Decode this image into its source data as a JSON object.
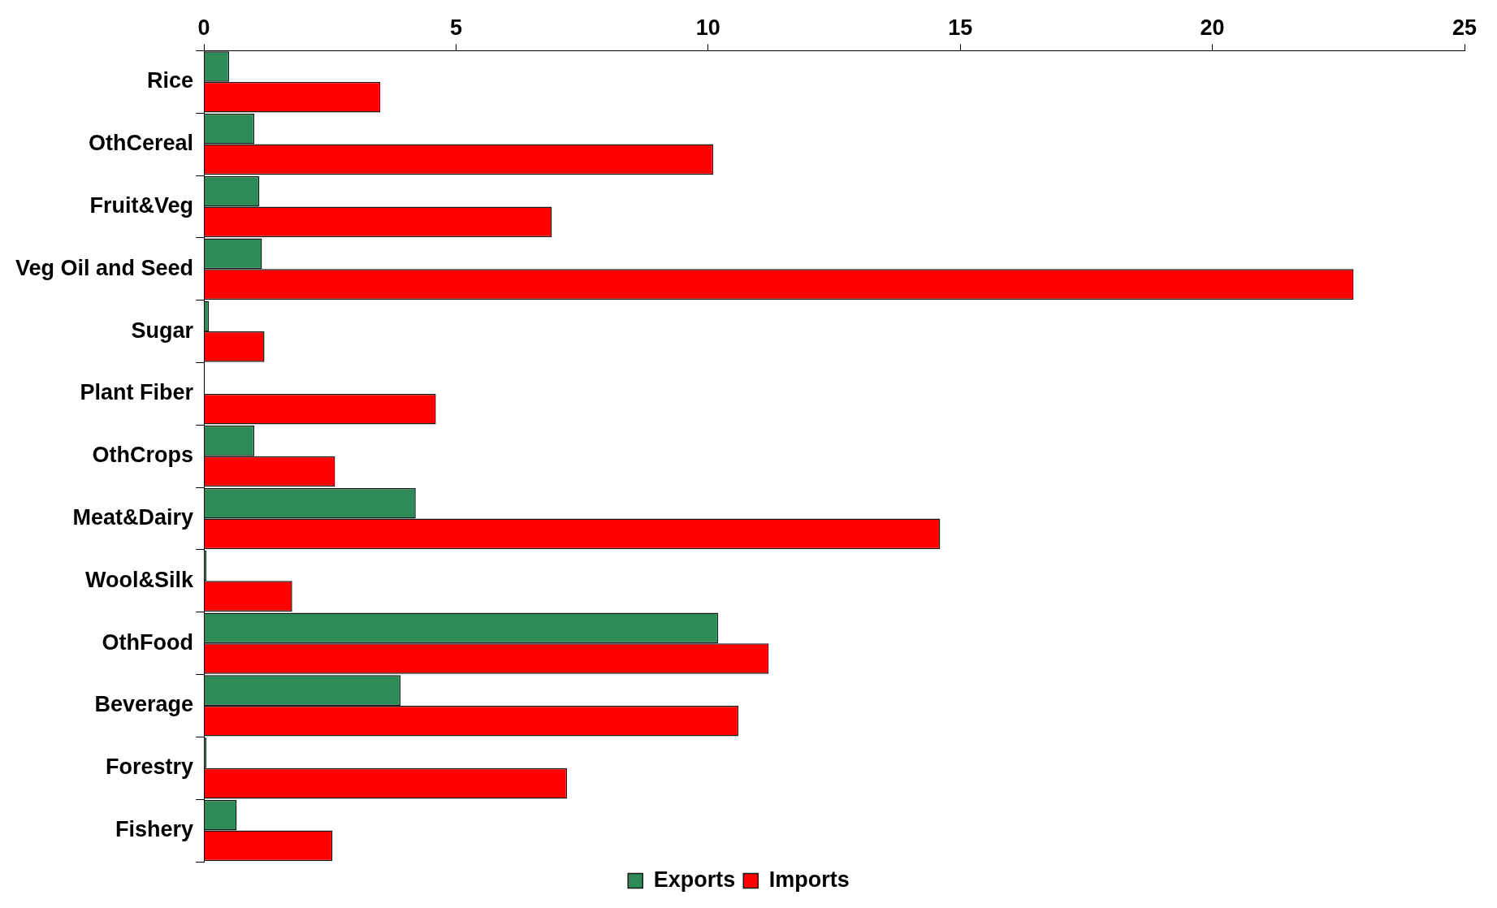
{
  "chart_data": {
    "type": "bar",
    "orientation": "horizontal",
    "categories": [
      "Rice",
      "OthCereal",
      "Fruit&Veg",
      "Veg Oil and Seed",
      "Sugar",
      "Plant Fiber",
      "OthCrops",
      "Meat&Dairy",
      "Wool&Silk",
      "OthFood",
      "Beverage",
      "Forestry",
      "Fishery"
    ],
    "series": [
      {
        "name": "Exports",
        "color": "#2e8b57",
        "values": [
          0.5,
          1.0,
          1.1,
          1.15,
          0.1,
          0,
          1.0,
          4.2,
          0.05,
          10.2,
          3.9,
          0.05,
          0.65
        ]
      },
      {
        "name": "Imports",
        "color": "#ff0000",
        "values": [
          3.5,
          10.1,
          6.9,
          22.8,
          1.2,
          4.6,
          2.6,
          14.6,
          1.75,
          11.2,
          10.6,
          7.2,
          2.55
        ]
      }
    ],
    "xlim": [
      0,
      25
    ],
    "xticks": [
      0,
      5,
      10,
      15,
      20,
      25
    ],
    "grid": false,
    "legend": "bottom"
  }
}
